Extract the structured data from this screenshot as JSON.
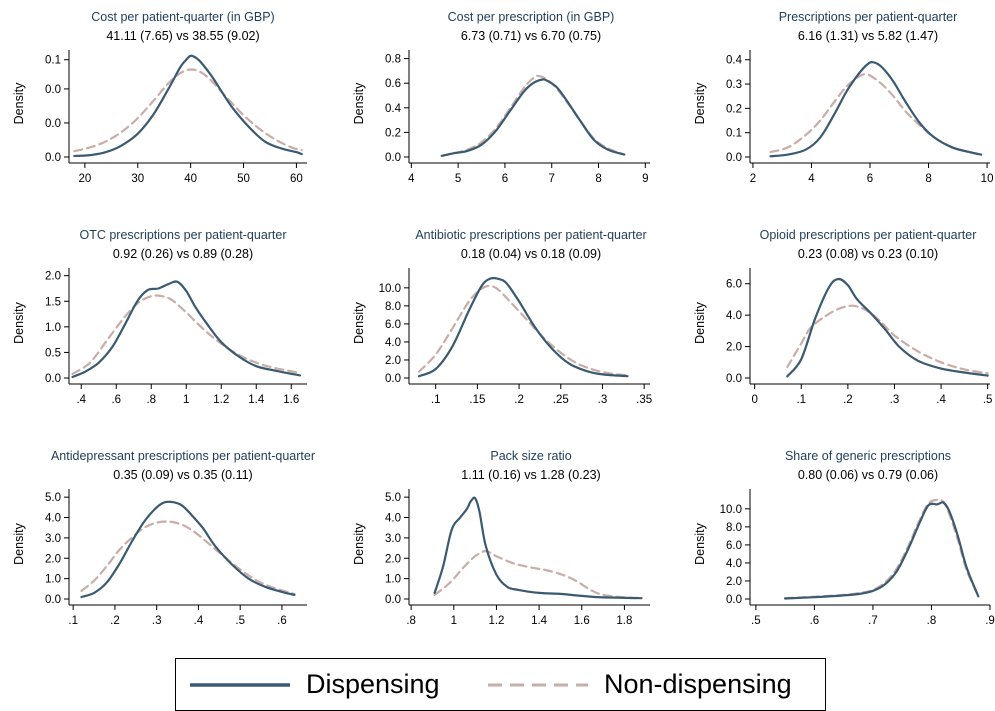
{
  "legend": {
    "series_names": [
      "Dispensing",
      "Non-dispensing"
    ],
    "colors": {
      "Dispensing": "#3a5a72",
      "Non-dispensing": "#c9ada7"
    }
  },
  "chart_data": [
    {
      "type": "line",
      "title": "Cost per patient-quarter (in GBP)",
      "subtitle": "41.11 (7.65) vs 38.55 (9.02)",
      "ylabel": "Density",
      "xlim": [
        17,
        62
      ],
      "ylim": [
        0,
        0.11
      ],
      "xticks": [
        20,
        30,
        40,
        50,
        60
      ],
      "xtick_labels": [
        "20",
        "30",
        "40",
        "50",
        "60"
      ],
      "yticks": [
        0,
        0.035,
        0.07,
        0.1
      ],
      "ytick_labels": [
        "0.0",
        "0.0",
        "0.0",
        "0.1"
      ],
      "series": [
        {
          "name": "Dispensing",
          "x": [
            18,
            21,
            24,
            27,
            30,
            33,
            36,
            38,
            39,
            40,
            41,
            42,
            44,
            46,
            48,
            51,
            54,
            57,
            60,
            61
          ],
          "y": [
            0.001,
            0.002,
            0.005,
            0.012,
            0.024,
            0.044,
            0.072,
            0.092,
            0.099,
            0.104,
            0.102,
            0.097,
            0.083,
            0.066,
            0.05,
            0.031,
            0.016,
            0.009,
            0.005,
            0.003
          ]
        },
        {
          "name": "Non-dispensing",
          "x": [
            18,
            21,
            24,
            27,
            30,
            33,
            36,
            38,
            40,
            42,
            44,
            47,
            50,
            53,
            56,
            59,
            61
          ],
          "y": [
            0.006,
            0.01,
            0.016,
            0.026,
            0.04,
            0.058,
            0.077,
            0.086,
            0.09,
            0.087,
            0.078,
            0.06,
            0.043,
            0.029,
            0.018,
            0.01,
            0.007
          ]
        }
      ]
    },
    {
      "type": "line",
      "title": "Cost per prescription (in GBP)",
      "subtitle": "6.73 (0.71) vs 6.70 (0.75)",
      "ylabel": "Density",
      "xlim": [
        3.95,
        9.1
      ],
      "ylim": [
        0,
        0.87
      ],
      "xticks": [
        4,
        5,
        6,
        7,
        8,
        9
      ],
      "xtick_labels": [
        "4",
        "5",
        "6",
        "7",
        "8",
        "9"
      ],
      "yticks": [
        0,
        0.2,
        0.4,
        0.6,
        0.8
      ],
      "ytick_labels": [
        "0.0",
        "0.2",
        "0.4",
        "0.6",
        "0.8"
      ],
      "series": [
        {
          "name": "Dispensing",
          "x": [
            4.65,
            4.9,
            5.2,
            5.5,
            5.8,
            6.1,
            6.4,
            6.6,
            6.8,
            6.9,
            7.1,
            7.3,
            7.6,
            7.9,
            8.2,
            8.55
          ],
          "y": [
            0.01,
            0.03,
            0.05,
            0.1,
            0.21,
            0.37,
            0.53,
            0.6,
            0.63,
            0.62,
            0.57,
            0.47,
            0.3,
            0.14,
            0.06,
            0.02
          ]
        },
        {
          "name": "Non-dispensing",
          "x": [
            4.65,
            4.9,
            5.2,
            5.5,
            5.8,
            6.1,
            6.4,
            6.6,
            6.7,
            6.9,
            7.1,
            7.3,
            7.6,
            7.9,
            8.2,
            8.55
          ],
          "y": [
            0.01,
            0.03,
            0.06,
            0.12,
            0.23,
            0.39,
            0.56,
            0.64,
            0.66,
            0.63,
            0.56,
            0.46,
            0.3,
            0.15,
            0.07,
            0.02
          ]
        }
      ]
    },
    {
      "type": "line",
      "title": "Prescriptions per patient-quarter",
      "subtitle": "6.16 (1.31) vs 5.82 (1.47)",
      "ylabel": "Density",
      "xlim": [
        1.9,
        10.1
      ],
      "ylim": [
        0,
        0.44
      ],
      "xticks": [
        2,
        4,
        6,
        8,
        10
      ],
      "xtick_labels": [
        "2",
        "4",
        "6",
        "8",
        "10"
      ],
      "yticks": [
        0,
        0.1,
        0.2,
        0.3,
        0.4
      ],
      "ytick_labels": [
        "0.0",
        "0.1",
        "0.2",
        "0.3",
        "0.4"
      ],
      "series": [
        {
          "name": "Dispensing",
          "x": [
            2.6,
            3.2,
            3.8,
            4.3,
            4.8,
            5.2,
            5.6,
            5.9,
            6.1,
            6.4,
            6.8,
            7.2,
            7.7,
            8.2,
            8.8,
            9.4,
            9.8
          ],
          "y": [
            0.003,
            0.01,
            0.03,
            0.08,
            0.18,
            0.27,
            0.34,
            0.38,
            0.39,
            0.37,
            0.31,
            0.23,
            0.14,
            0.08,
            0.04,
            0.02,
            0.01
          ]
        },
        {
          "name": "Non-dispensing",
          "x": [
            2.6,
            3.2,
            3.8,
            4.3,
            4.8,
            5.2,
            5.6,
            5.8,
            6.0,
            6.4,
            6.8,
            7.2,
            7.7,
            8.2,
            8.8,
            9.4,
            9.8
          ],
          "y": [
            0.02,
            0.04,
            0.09,
            0.15,
            0.23,
            0.29,
            0.33,
            0.34,
            0.335,
            0.3,
            0.25,
            0.19,
            0.13,
            0.08,
            0.04,
            0.02,
            0.01
          ]
        }
      ]
    },
    {
      "type": "line",
      "title": "OTC prescriptions per patient-quarter",
      "subtitle": "0.92 (0.26) vs 0.89 (0.28)",
      "ylabel": "Density",
      "xlim": [
        0.33,
        1.69
      ],
      "ylim": [
        0,
        2.15
      ],
      "xticks": [
        0.4,
        0.6,
        0.8,
        1.0,
        1.2,
        1.4,
        1.6
      ],
      "xtick_labels": [
        ".4",
        ".6",
        ".8",
        "1",
        "1.2",
        "1.4",
        "1.6"
      ],
      "yticks": [
        0,
        0.5,
        1.0,
        1.5,
        2.0
      ],
      "ytick_labels": [
        "0.0",
        "0.5",
        "1.0",
        "1.5",
        "2.0"
      ],
      "series": [
        {
          "name": "Dispensing",
          "x": [
            0.35,
            0.42,
            0.5,
            0.58,
            0.65,
            0.72,
            0.78,
            0.84,
            0.9,
            0.95,
            1.0,
            1.05,
            1.12,
            1.2,
            1.3,
            1.4,
            1.5,
            1.65
          ],
          "y": [
            0.02,
            0.12,
            0.3,
            0.62,
            1.05,
            1.5,
            1.72,
            1.75,
            1.84,
            1.88,
            1.7,
            1.4,
            1.05,
            0.7,
            0.42,
            0.23,
            0.15,
            0.05
          ]
        },
        {
          "name": "Non-dispensing",
          "x": [
            0.35,
            0.45,
            0.55,
            0.65,
            0.73,
            0.8,
            0.86,
            0.92,
            1.0,
            1.1,
            1.2,
            1.3,
            1.4,
            1.5,
            1.65
          ],
          "y": [
            0.08,
            0.3,
            0.75,
            1.2,
            1.48,
            1.6,
            1.6,
            1.52,
            1.28,
            0.95,
            0.67,
            0.45,
            0.3,
            0.2,
            0.1
          ]
        }
      ]
    },
    {
      "type": "line",
      "title": "Antibiotic prescriptions per patient-quarter",
      "subtitle": "0.18 (0.04) vs 0.18 (0.09)",
      "ylabel": "Density",
      "xlim": [
        0.068,
        0.357
      ],
      "ylim": [
        0,
        12.2
      ],
      "xticks": [
        0.1,
        0.15,
        0.2,
        0.25,
        0.3,
        0.35
      ],
      "xtick_labels": [
        ".1",
        ".15",
        ".2",
        ".25",
        ".3",
        ".35"
      ],
      "yticks": [
        0,
        2,
        4,
        6,
        8,
        10
      ],
      "ytick_labels": [
        "0.0",
        "2.0",
        "4.0",
        "6.0",
        "8.0",
        "10.0"
      ],
      "series": [
        {
          "name": "Dispensing",
          "x": [
            0.08,
            0.1,
            0.12,
            0.14,
            0.155,
            0.165,
            0.175,
            0.185,
            0.2,
            0.22,
            0.24,
            0.26,
            0.28,
            0.3,
            0.33
          ],
          "y": [
            0.2,
            1.0,
            3.5,
            7.5,
            10.2,
            11.0,
            11.0,
            10.5,
            8.5,
            5.5,
            3.2,
            1.6,
            0.8,
            0.4,
            0.2
          ]
        },
        {
          "name": "Non-dispensing",
          "x": [
            0.08,
            0.1,
            0.12,
            0.14,
            0.155,
            0.165,
            0.175,
            0.19,
            0.21,
            0.23,
            0.25,
            0.27,
            0.29,
            0.31,
            0.33
          ],
          "y": [
            0.7,
            2.6,
            5.5,
            8.5,
            9.9,
            10.2,
            9.8,
            8.4,
            6.4,
            4.4,
            2.8,
            1.6,
            0.9,
            0.5,
            0.3
          ]
        }
      ]
    },
    {
      "type": "line",
      "title": "Opioid prescriptions per patient-quarter",
      "subtitle": "0.23 (0.08) vs 0.23 (0.10)",
      "ylabel": "Density",
      "xlim": [
        -0.01,
        0.505
      ],
      "ylim": [
        0,
        7.0
      ],
      "xticks": [
        0,
        0.1,
        0.2,
        0.3,
        0.4,
        0.5
      ],
      "xtick_labels": [
        "0",
        ".1",
        ".2",
        ".3",
        ".4",
        ".5"
      ],
      "yticks": [
        0,
        2,
        4,
        6
      ],
      "ytick_labels": [
        "0.0",
        "2.0",
        "4.0",
        "6.0"
      ],
      "series": [
        {
          "name": "Dispensing",
          "x": [
            0.07,
            0.1,
            0.13,
            0.16,
            0.18,
            0.2,
            0.22,
            0.25,
            0.28,
            0.31,
            0.35,
            0.4,
            0.45,
            0.5
          ],
          "y": [
            0.1,
            1.2,
            3.8,
            5.8,
            6.3,
            5.9,
            5.0,
            4.1,
            3.1,
            2.0,
            1.1,
            0.6,
            0.35,
            0.15
          ]
        },
        {
          "name": "Non-dispensing",
          "x": [
            0.07,
            0.1,
            0.12,
            0.15,
            0.18,
            0.21,
            0.24,
            0.27,
            0.3,
            0.35,
            0.4,
            0.45,
            0.5
          ],
          "y": [
            0.7,
            2.2,
            3.2,
            3.9,
            4.4,
            4.6,
            4.3,
            3.6,
            2.7,
            1.7,
            1.0,
            0.55,
            0.3
          ]
        }
      ]
    },
    {
      "type": "line",
      "title": "Antidepressant prescriptions per patient-quarter",
      "subtitle": "0.35 (0.09) vs 0.35 (0.11)",
      "ylabel": "Density",
      "xlim": [
        0.09,
        0.66
      ],
      "ylim": [
        0,
        5.4
      ],
      "xticks": [
        0.1,
        0.2,
        0.3,
        0.4,
        0.5,
        0.6
      ],
      "xtick_labels": [
        ".1",
        ".2",
        ".3",
        ".4",
        ".5",
        ".6"
      ],
      "yticks": [
        0,
        1,
        2,
        3,
        4,
        5
      ],
      "ytick_labels": [
        "0.0",
        "1.0",
        "2.0",
        "3.0",
        "4.0",
        "5.0"
      ],
      "series": [
        {
          "name": "Dispensing",
          "x": [
            0.12,
            0.15,
            0.18,
            0.21,
            0.24,
            0.27,
            0.3,
            0.32,
            0.34,
            0.36,
            0.38,
            0.41,
            0.44,
            0.48,
            0.52,
            0.56,
            0.6,
            0.63
          ],
          "y": [
            0.1,
            0.3,
            0.8,
            1.7,
            2.8,
            3.8,
            4.5,
            4.75,
            4.75,
            4.6,
            4.2,
            3.5,
            2.6,
            1.7,
            1.0,
            0.6,
            0.35,
            0.2
          ]
        },
        {
          "name": "Non-dispensing",
          "x": [
            0.12,
            0.15,
            0.18,
            0.21,
            0.24,
            0.27,
            0.3,
            0.33,
            0.36,
            0.39,
            0.42,
            0.46,
            0.5,
            0.54,
            0.58,
            0.63
          ],
          "y": [
            0.4,
            0.9,
            1.6,
            2.4,
            3.0,
            3.5,
            3.75,
            3.8,
            3.65,
            3.3,
            2.8,
            2.1,
            1.45,
            0.9,
            0.55,
            0.25
          ]
        }
      ]
    },
    {
      "type": "line",
      "title": "Pack size ratio",
      "subtitle": "1.11 (0.16) vs 1.28 (0.23)",
      "ylabel": "Density",
      "xlim": [
        0.79,
        1.92
      ],
      "ylim": [
        0,
        5.4
      ],
      "xticks": [
        0.8,
        1.0,
        1.2,
        1.4,
        1.6,
        1.8
      ],
      "xtick_labels": [
        ".8",
        "1",
        "1.2",
        "1.4",
        "1.6",
        "1.8"
      ],
      "yticks": [
        0,
        1,
        2,
        3,
        4,
        5
      ],
      "ytick_labels": [
        "0.0",
        "1.0",
        "2.0",
        "3.0",
        "4.0",
        "5.0"
      ],
      "series": [
        {
          "name": "Dispensing",
          "x": [
            0.91,
            0.95,
            0.99,
            1.03,
            1.06,
            1.08,
            1.1,
            1.12,
            1.15,
            1.2,
            1.25,
            1.3,
            1.4,
            1.5,
            1.6,
            1.7,
            1.88
          ],
          "y": [
            0.3,
            1.6,
            3.4,
            4.0,
            4.4,
            4.8,
            4.95,
            4.3,
            2.6,
            1.2,
            0.6,
            0.45,
            0.3,
            0.25,
            0.15,
            0.08,
            0.04
          ]
        },
        {
          "name": "Non-dispensing",
          "x": [
            0.91,
            0.96,
            1.0,
            1.05,
            1.1,
            1.15,
            1.2,
            1.28,
            1.36,
            1.44,
            1.52,
            1.58,
            1.64,
            1.7,
            1.8,
            1.88
          ],
          "y": [
            0.2,
            0.6,
            1.0,
            1.6,
            2.1,
            2.35,
            2.1,
            1.75,
            1.55,
            1.4,
            1.15,
            0.85,
            0.45,
            0.2,
            0.08,
            0.04
          ]
        }
      ]
    },
    {
      "type": "line",
      "title": "Share of generic prescriptions",
      "subtitle": "0.80 (0.06) vs 0.79 (0.06)",
      "ylabel": "Density",
      "xlim": [
        0.49,
        0.9
      ],
      "ylim": [
        0,
        12.2
      ],
      "xticks": [
        0.5,
        0.6,
        0.7,
        0.8,
        0.9
      ],
      "xtick_labels": [
        ".5",
        ".6",
        ".7",
        ".8",
        ".9"
      ],
      "yticks": [
        0,
        2,
        4,
        6,
        8,
        10
      ],
      "ytick_labels": [
        "0.0",
        "2.0",
        "4.0",
        "6.0",
        "8.0",
        "10.0"
      ],
      "series": [
        {
          "name": "Dispensing",
          "x": [
            0.55,
            0.6,
            0.65,
            0.68,
            0.7,
            0.72,
            0.74,
            0.76,
            0.78,
            0.795,
            0.81,
            0.82,
            0.83,
            0.845,
            0.86,
            0.88
          ],
          "y": [
            0.05,
            0.2,
            0.4,
            0.6,
            0.9,
            1.6,
            3.0,
            5.5,
            8.5,
            10.4,
            10.5,
            10.7,
            9.8,
            7.0,
            3.5,
            0.3
          ]
        },
        {
          "name": "Non-dispensing",
          "x": [
            0.55,
            0.6,
            0.65,
            0.68,
            0.7,
            0.72,
            0.74,
            0.76,
            0.78,
            0.795,
            0.81,
            0.82,
            0.83,
            0.845,
            0.86,
            0.88
          ],
          "y": [
            0.1,
            0.25,
            0.45,
            0.7,
            1.0,
            1.8,
            3.3,
            5.8,
            8.8,
            10.6,
            11.0,
            10.8,
            9.5,
            6.6,
            3.2,
            0.4
          ]
        }
      ]
    }
  ]
}
